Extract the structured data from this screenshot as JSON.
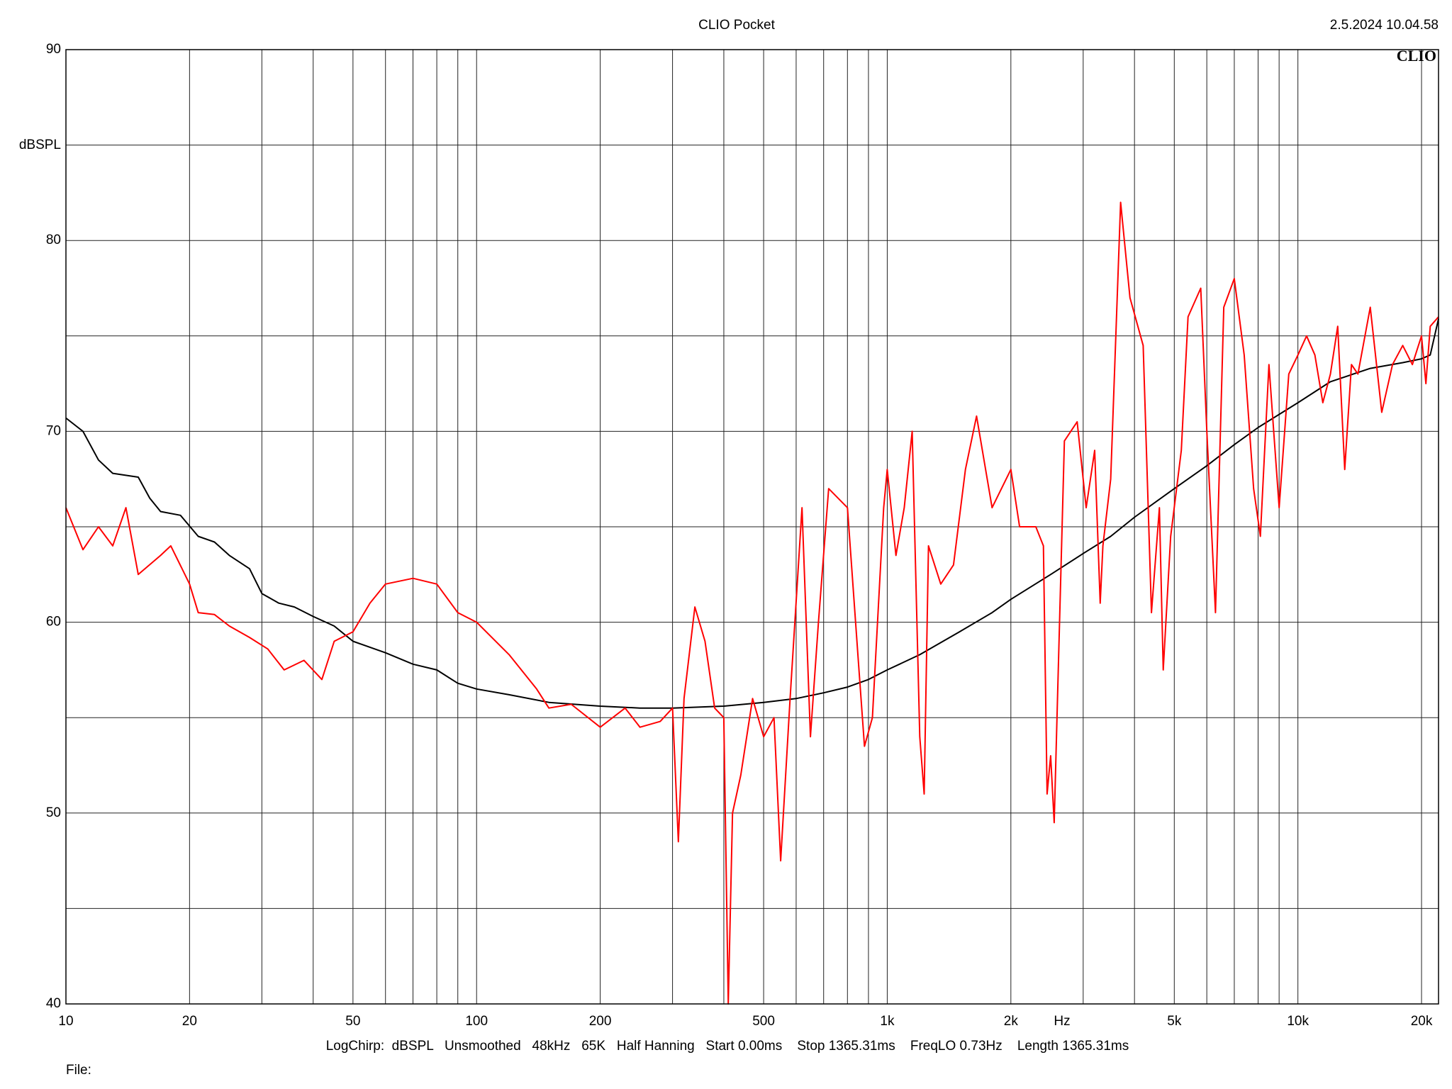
{
  "chart_data": {
    "type": "line",
    "title": "CLIO Pocket",
    "timestamp": "2.5.2024 10.04.58",
    "logo": "CLIO",
    "ylabel": "dBSPL",
    "xlabel": "Hz",
    "settings": "LogChirp:  dBSPL   Unsmoothed   48kHz   65K   Half Hanning   Start 0.00ms    Stop 1365.31ms    FreqLO 0.73Hz    Length 1365.31ms",
    "file_label": "File:",
    "xscale": "log",
    "grid": true,
    "xlim": [
      10,
      22000
    ],
    "ylim": [
      40,
      90
    ],
    "xticks": [
      10,
      20,
      50,
      100,
      200,
      500,
      {
        "value": 1000,
        "label": "1k"
      },
      {
        "value": 2000,
        "label": "2k"
      },
      {
        "value": 5000,
        "label": "5k"
      },
      {
        "value": 10000,
        "label": "10k"
      },
      {
        "value": 20000,
        "label": "20k"
      }
    ],
    "xgrid_minor": [
      30,
      40,
      60,
      70,
      80,
      90,
      300,
      400,
      600,
      700,
      800,
      900,
      3000,
      4000,
      6000,
      7000,
      8000,
      9000
    ],
    "yticks": [
      40,
      50,
      60,
      70,
      80,
      90
    ],
    "ygrid_minor": [
      45,
      55,
      65,
      75,
      85
    ],
    "series": [
      {
        "color": "#000000",
        "x": [
          10,
          11,
          12,
          13,
          15,
          16,
          17,
          19,
          21,
          23,
          25,
          28,
          30,
          33,
          36,
          40,
          45,
          50,
          60,
          70,
          80,
          90,
          100,
          120,
          150,
          200,
          250,
          300,
          400,
          500,
          600,
          700,
          800,
          900,
          1000,
          1200,
          1500,
          1800,
          2000,
          2500,
          3000,
          3500,
          4000,
          5000,
          6000,
          7000,
          8000,
          10000,
          12000,
          15000,
          18000,
          20000,
          21000,
          22000
        ],
        "values": [
          70.7,
          70,
          68.5,
          67.8,
          67.6,
          66.5,
          65.8,
          65.6,
          64.5,
          64.2,
          63.5,
          62.8,
          61.5,
          61,
          60.8,
          60.3,
          59.8,
          59,
          58.4,
          57.8,
          57.5,
          56.8,
          56.5,
          56.2,
          55.8,
          55.6,
          55.5,
          55.5,
          55.6,
          55.8,
          56,
          56.3,
          56.6,
          57,
          57.5,
          58.3,
          59.5,
          60.5,
          61.2,
          62.5,
          63.6,
          64.5,
          65.5,
          67,
          68.2,
          69.3,
          70.2,
          71.5,
          72.6,
          73.3,
          73.6,
          73.8,
          74,
          75.9
        ]
      },
      {
        "color": "#ff0000",
        "x": [
          10,
          11,
          12,
          13,
          14,
          15,
          17,
          18,
          20,
          21,
          23,
          25,
          28,
          31,
          34,
          38,
          42,
          45,
          50,
          55,
          60,
          70,
          80,
          90,
          100,
          120,
          140,
          150,
          170,
          200,
          230,
          250,
          280,
          300,
          310,
          320,
          340,
          360,
          380,
          400,
          410,
          420,
          440,
          470,
          500,
          530,
          550,
          580,
          620,
          650,
          680,
          720,
          800,
          850,
          880,
          920,
          980,
          1000,
          1050,
          1100,
          1150,
          1200,
          1230,
          1260,
          1350,
          1450,
          1550,
          1650,
          1800,
          2000,
          2100,
          2300,
          2400,
          2450,
          2500,
          2550,
          2700,
          2900,
          3050,
          3200,
          3300,
          3350,
          3500,
          3700,
          3900,
          4200,
          4400,
          4600,
          4700,
          4900,
          5200,
          5400,
          5800,
          6000,
          6300,
          6600,
          7000,
          7400,
          7800,
          8100,
          8500,
          9000,
          9500,
          10000,
          10500,
          11000,
          11500,
          12000,
          12500,
          13000,
          13500,
          14000,
          15000,
          16000,
          17000,
          18000,
          19000,
          20000,
          20500,
          21000,
          22000
        ],
        "values": [
          66,
          63.8,
          65,
          64,
          66,
          62.5,
          63.5,
          64,
          62,
          60.5,
          60.4,
          59.8,
          59.2,
          58.6,
          57.5,
          58,
          57,
          59,
          59.5,
          61,
          62,
          62.3,
          62,
          60.5,
          60,
          58.3,
          56.5,
          55.5,
          55.7,
          54.5,
          55.5,
          54.5,
          54.8,
          55.5,
          48.5,
          56,
          60.8,
          59,
          55.5,
          55,
          40,
          50,
          52,
          56,
          54,
          55,
          47.5,
          56,
          66,
          54,
          60,
          67,
          66,
          58,
          53.5,
          55,
          66,
          68,
          63.5,
          66,
          70,
          54,
          51,
          64,
          62,
          63,
          68,
          70.8,
          66,
          68,
          65,
          65,
          64,
          51,
          53,
          49.5,
          69.5,
          70.5,
          66,
          69,
          61,
          64,
          67.5,
          82,
          77,
          74.5,
          60.5,
          66,
          57.5,
          64.5,
          69,
          76,
          77.5,
          70,
          60.5,
          76.5,
          78,
          74,
          67,
          64.5,
          73.5,
          66,
          73,
          74,
          75,
          74,
          71.5,
          73,
          75.5,
          68,
          73.5,
          73,
          76.5,
          71,
          73.5,
          74.5,
          73.5,
          75,
          72.5,
          75.5,
          76
        ]
      }
    ]
  }
}
